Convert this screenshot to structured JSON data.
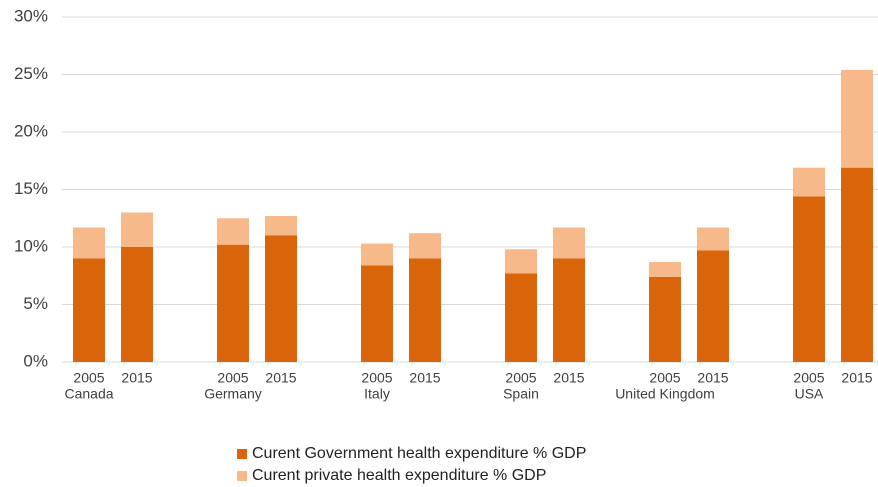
{
  "chart_data": {
    "type": "stacked-bar",
    "categories": [
      "2005",
      "2015",
      "2005",
      "2015",
      "2005",
      "2015",
      "2005",
      "2015",
      "2005",
      "2015",
      "2005",
      "2015"
    ],
    "groups": [
      "Canada",
      "Germany",
      "Italy",
      "Spain",
      "United Kingdom",
      "USA"
    ],
    "series": [
      {
        "name": "Curent Government health expenditure % GDP",
        "color": "#d9640a",
        "values": [
          9.0,
          10.0,
          10.2,
          11.0,
          8.4,
          9.0,
          7.7,
          9.0,
          7.4,
          9.7,
          14.4,
          16.9
        ]
      },
      {
        "name": "Curent private health expenditure % GDP",
        "color": "#f8b98a",
        "values": [
          2.7,
          3.0,
          2.3,
          1.7,
          1.9,
          2.2,
          2.1,
          2.7,
          1.3,
          2.0,
          2.5,
          8.5
        ]
      }
    ],
    "ylim": [
      0,
      30
    ],
    "yticks": [
      {
        "value": 0,
        "label": "0%"
      },
      {
        "value": 5,
        "label": "5%"
      },
      {
        "value": 10,
        "label": "10%"
      },
      {
        "value": 15,
        "label": "15%"
      },
      {
        "value": 20,
        "label": "20%"
      },
      {
        "value": 25,
        "label": "25%"
      },
      {
        "value": 30,
        "label": "30%"
      }
    ],
    "grid": true,
    "legend": "bottom"
  }
}
